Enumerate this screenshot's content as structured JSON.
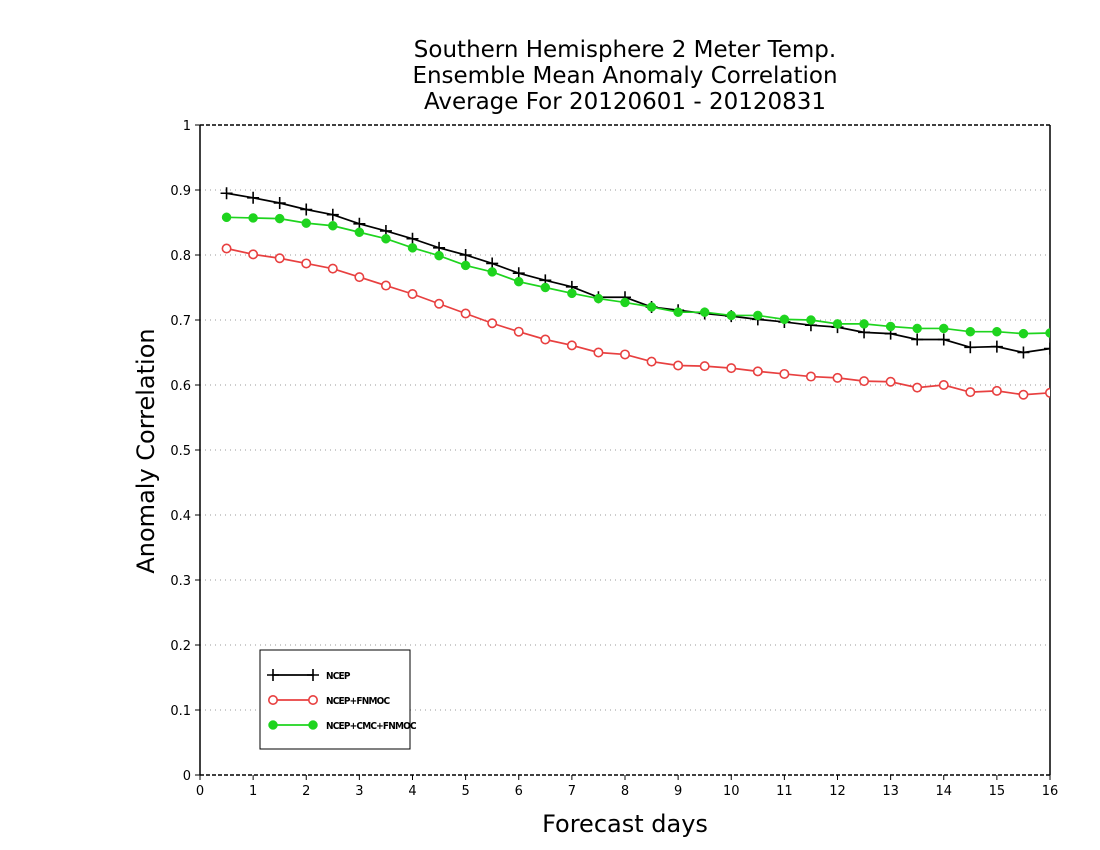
{
  "chart_data": {
    "type": "line",
    "title_lines": [
      "Southern Hemisphere 2 Meter Temp.",
      "Ensemble Mean Anomaly Correlation",
      "Average For 20120601 - 20120831"
    ],
    "xlabel": "Forecast days",
    "ylabel": "Anomaly Correlation",
    "xlim": [
      0,
      16
    ],
    "ylim": [
      0,
      1
    ],
    "x_ticks": [
      "0",
      "1",
      "2",
      "3",
      "4",
      "5",
      "6",
      "7",
      "8",
      "9",
      "10",
      "11",
      "12",
      "13",
      "14",
      "15",
      "16"
    ],
    "y_ticks": [
      "0",
      "0.1",
      "0.2",
      "0.3",
      "0.4",
      "0.5",
      "0.6",
      "0.7",
      "0.8",
      "0.9",
      "1"
    ],
    "grid": true,
    "legend_position": "bottom-left",
    "x": [
      0.5,
      1,
      1.5,
      2,
      2.5,
      3,
      3.5,
      4,
      4.5,
      5,
      5.5,
      6,
      6.5,
      7,
      7.5,
      8,
      8.5,
      9,
      9.5,
      10,
      10.5,
      11,
      11.5,
      12,
      12.5,
      13,
      13.5,
      14,
      14.5,
      15,
      15.5,
      16
    ],
    "series": [
      {
        "name": "NCEP",
        "color": "#000000",
        "marker": "plus",
        "values": [
          0.895,
          0.888,
          0.88,
          0.87,
          0.862,
          0.848,
          0.837,
          0.825,
          0.811,
          0.8,
          0.787,
          0.772,
          0.761,
          0.751,
          0.735,
          0.735,
          0.72,
          0.715,
          0.71,
          0.706,
          0.701,
          0.697,
          0.692,
          0.689,
          0.681,
          0.679,
          0.67,
          0.67,
          0.658,
          0.659,
          0.65,
          0.656
        ]
      },
      {
        "name": "NCEP+FNMOC",
        "color": "#e84040",
        "marker": "open-circle",
        "values": [
          0.81,
          0.801,
          0.795,
          0.787,
          0.779,
          0.766,
          0.753,
          0.74,
          0.725,
          0.71,
          0.695,
          0.682,
          0.67,
          0.661,
          0.65,
          0.647,
          0.636,
          0.63,
          0.629,
          0.626,
          0.621,
          0.617,
          0.613,
          0.611,
          0.606,
          0.605,
          0.596,
          0.6,
          0.589,
          0.591,
          0.585,
          0.588
        ]
      },
      {
        "name": "NCEP+CMC+FNMOC",
        "color": "#1ed41e",
        "marker": "filled-circle",
        "values": [
          0.858,
          0.857,
          0.856,
          0.849,
          0.845,
          0.835,
          0.825,
          0.811,
          0.799,
          0.784,
          0.774,
          0.759,
          0.75,
          0.741,
          0.733,
          0.727,
          0.72,
          0.712,
          0.712,
          0.707,
          0.707,
          0.701,
          0.7,
          0.694,
          0.694,
          0.69,
          0.687,
          0.687,
          0.682,
          0.682,
          0.679,
          0.68
        ]
      }
    ]
  }
}
